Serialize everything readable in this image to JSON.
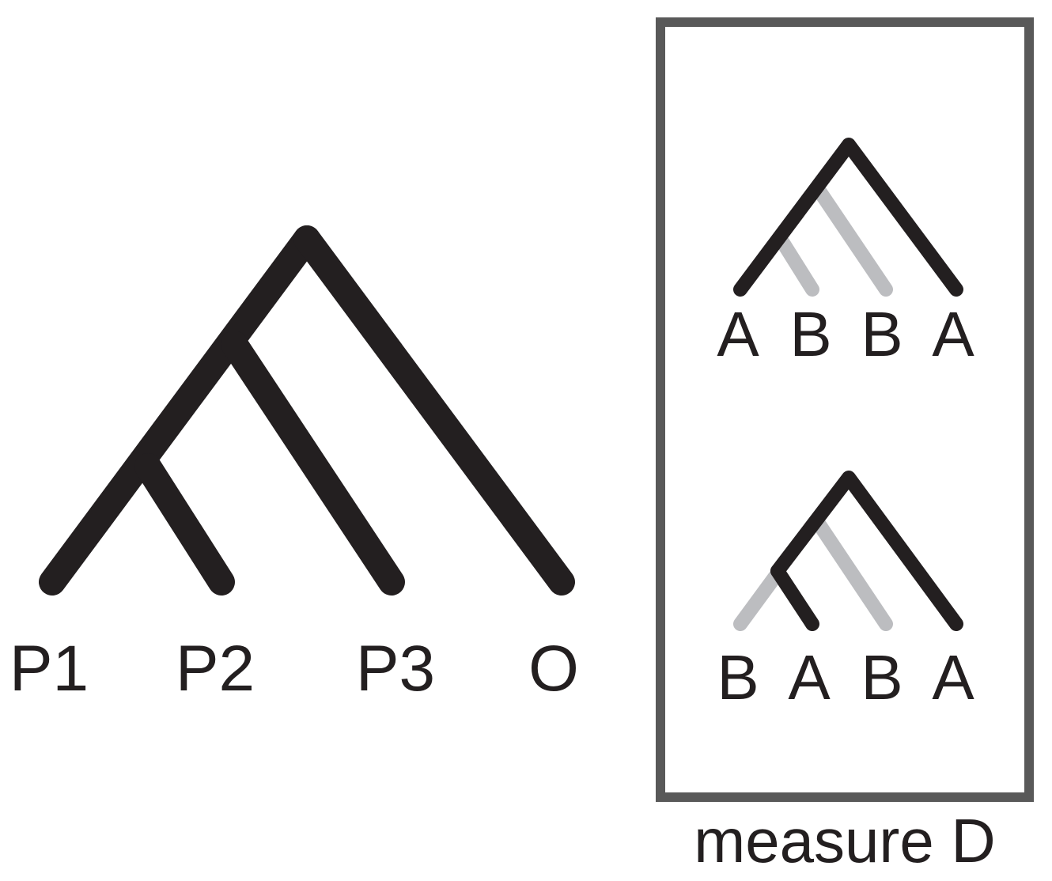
{
  "main_tree": {
    "tips": [
      {
        "label": "P1"
      },
      {
        "label": "P2"
      },
      {
        "label": "P3"
      },
      {
        "label": "O"
      }
    ]
  },
  "measure_box": {
    "caption": "measure D",
    "frame_color": "#595959",
    "patterns": [
      {
        "id": "ABBA",
        "tips": [
          "A",
          "B",
          "B",
          "A"
        ]
      },
      {
        "id": "BABA",
        "tips": [
          "B",
          "A",
          "B",
          "A"
        ]
      }
    ]
  },
  "colors": {
    "branch": "#231f20",
    "gene_tree_gray": "#bcbdc0",
    "text": "#231f20"
  }
}
